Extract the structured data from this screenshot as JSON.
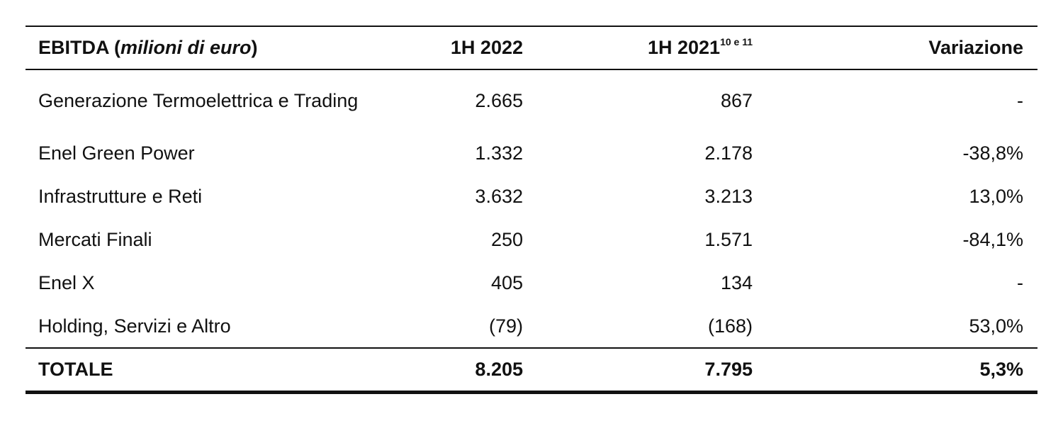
{
  "table": {
    "header": {
      "label_prefix": "EBITDA (",
      "label_unit": "milioni di euro",
      "label_suffix": ")",
      "col_1h2022": "1H 2022",
      "col_1h2021": "1H 2021",
      "col_1h2021_note": "10 e 11",
      "col_variazione": "Variazione"
    },
    "rows": [
      {
        "label": "Generazione Termoelettrica e Trading",
        "h2022": "2.665",
        "h2021": "867",
        "variazione": "-"
      },
      {
        "label": "Enel Green Power",
        "h2022": "1.332",
        "h2021": "2.178",
        "variazione": "-38,8%"
      },
      {
        "label": "Infrastrutture e Reti",
        "h2022": "3.632",
        "h2021": "3.213",
        "variazione": "13,0%"
      },
      {
        "label": "Mercati Finali",
        "h2022": "250",
        "h2021": "1.571",
        "variazione": "-84,1%"
      },
      {
        "label": "Enel X",
        "h2022": "405",
        "h2021": "134",
        "variazione": "-"
      },
      {
        "label": "Holding, Servizi e Altro",
        "h2022": "(79)",
        "h2021": "(168)",
        "variazione": "53,0%"
      }
    ],
    "total": {
      "label": "TOTALE",
      "h2022": "8.205",
      "h2021": "7.795",
      "variazione": "5,3%"
    }
  }
}
